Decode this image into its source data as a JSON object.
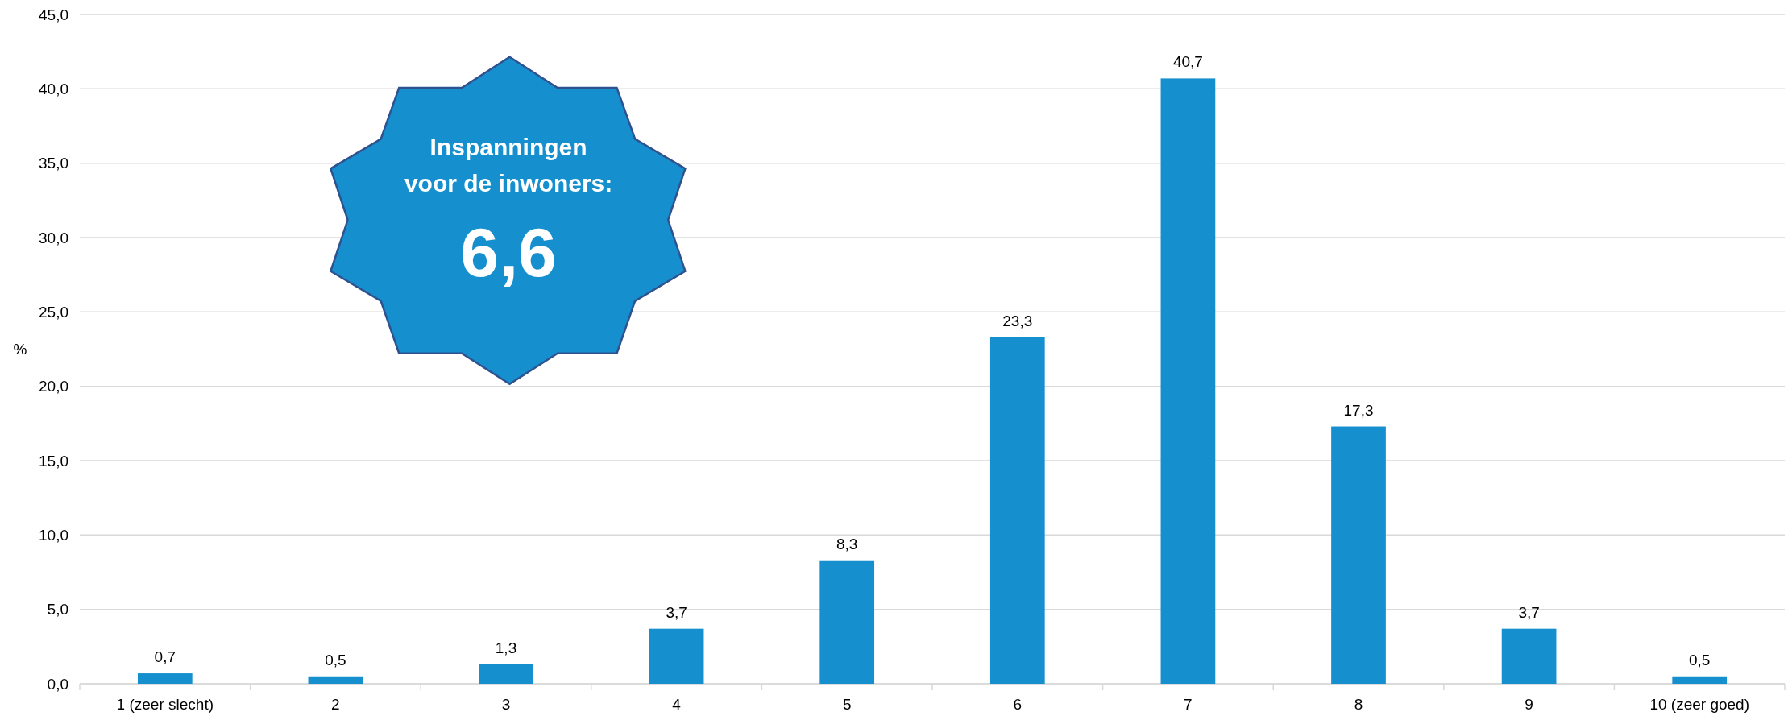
{
  "chart_data": {
    "type": "bar",
    "ylabel": "%",
    "categories": [
      "1 (zeer slecht)",
      "2",
      "3",
      "4",
      "5",
      "6",
      "7",
      "8",
      "9",
      "10 (zeer goed)"
    ],
    "values": [
      0.7,
      0.5,
      1.3,
      3.7,
      8.3,
      23.3,
      40.7,
      17.3,
      3.7,
      0.5
    ],
    "value_labels": [
      "0,7",
      "0,5",
      "1,3",
      "3,7",
      "8,3",
      "23,3",
      "40,7",
      "17,3",
      "3,7",
      "0,5"
    ],
    "color": "#168fce",
    "ylim": [
      0,
      45
    ],
    "yticks": [
      {
        "value": 0,
        "label": "0,0"
      },
      {
        "value": 5,
        "label": "5,0"
      },
      {
        "value": 10,
        "label": "10,0"
      },
      {
        "value": 15,
        "label": "15,0"
      },
      {
        "value": 20,
        "label": "20,0"
      },
      {
        "value": 25,
        "label": "25,0"
      },
      {
        "value": 30,
        "label": "30,0"
      },
      {
        "value": 35,
        "label": "35,0"
      },
      {
        "value": 40,
        "label": "40,0"
      },
      {
        "value": 45,
        "label": "45,0"
      }
    ],
    "grid": "y",
    "annotations": [
      "Inspanningen",
      "voor de inwoners:",
      "6,6"
    ]
  }
}
